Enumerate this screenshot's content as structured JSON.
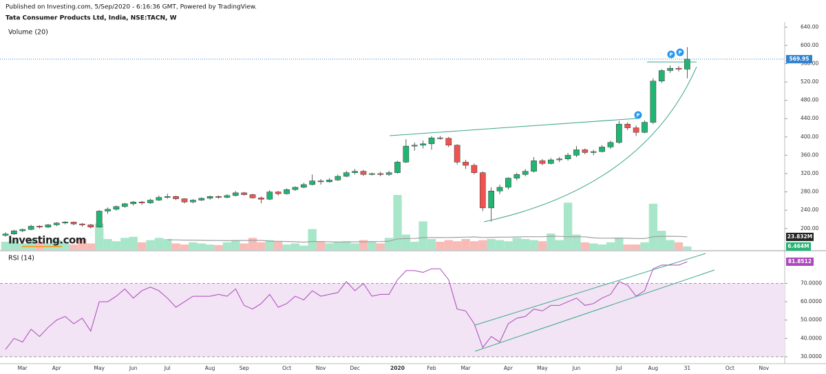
{
  "header": {
    "published": "Published on Investing.com, 5/Sep/2020 - 6:16:36 GMT, Powered by TradingView.",
    "title": "Tata Consumer Products Ltd, India, NSE:TACN, W"
  },
  "logo": "Investing.com",
  "chart_data": {
    "type": "candlestick",
    "categories": [
      null,
      null,
      "Mar",
      null,
      null,
      null,
      "Apr",
      null,
      null,
      null,
      null,
      "May",
      null,
      null,
      null,
      "Jun",
      null,
      null,
      null,
      "Jul",
      null,
      null,
      null,
      null,
      "Aug",
      null,
      null,
      null,
      "Sep",
      null,
      null,
      null,
      null,
      "Oct",
      null,
      null,
      null,
      "Nov",
      null,
      null,
      null,
      "Dec",
      null,
      null,
      null,
      null,
      "2020",
      null,
      null,
      null,
      "Feb",
      null,
      null,
      null,
      "Mar",
      null,
      null,
      null,
      null,
      "Apr",
      null,
      null,
      null,
      "May",
      null,
      null,
      null,
      "Jun",
      null,
      null,
      null,
      null,
      "Jul",
      null,
      null,
      null,
      "Aug",
      null,
      null,
      null,
      "31",
      null,
      null,
      null,
      null,
      "Oct",
      null,
      null,
      null,
      "Nov",
      null
    ],
    "open": [
      185,
      188,
      195,
      198,
      205,
      203,
      208,
      212,
      214,
      210,
      208,
      203,
      238,
      242,
      248,
      254,
      258,
      256,
      262,
      268,
      270,
      265,
      258,
      262,
      266,
      270,
      268,
      272,
      278,
      274,
      267,
      264,
      280,
      276,
      285,
      290,
      296,
      304,
      302,
      306,
      314,
      322,
      325,
      318,
      320,
      318,
      322,
      345,
      380,
      382,
      385,
      398,
      397,
      382,
      345,
      338,
      322,
      245,
      282,
      290,
      310,
      318,
      325,
      348,
      342,
      350,
      352,
      360,
      372,
      366,
      368,
      378,
      388,
      428,
      420,
      410,
      432,
      522,
      545,
      550,
      548,
      null,
      null,
      null,
      null,
      null,
      null,
      null,
      null,
      null,
      null
    ],
    "high": [
      192,
      197,
      200,
      208,
      207,
      210,
      214,
      216,
      215,
      212,
      210,
      240,
      246,
      250,
      256,
      260,
      260,
      265,
      272,
      276,
      272,
      266,
      264,
      268,
      272,
      272,
      275,
      282,
      280,
      276,
      270,
      284,
      282,
      288,
      292,
      300,
      318,
      308,
      310,
      318,
      326,
      330,
      328,
      322,
      324,
      326,
      348,
      395,
      388,
      392,
      402,
      402,
      400,
      384,
      350,
      342,
      325,
      290,
      296,
      312,
      322,
      330,
      356,
      352,
      354,
      356,
      365,
      380,
      375,
      372,
      382,
      392,
      435,
      432,
      425,
      436,
      528,
      548,
      556,
      555,
      596,
      null,
      null,
      null,
      null,
      null,
      null,
      null,
      null,
      null,
      null
    ],
    "low": [
      182,
      186,
      192,
      196,
      200,
      201,
      205,
      209,
      207,
      204,
      200,
      202,
      232,
      239,
      245,
      250,
      252,
      254,
      260,
      265,
      262,
      255,
      255,
      260,
      263,
      265,
      266,
      270,
      272,
      265,
      255,
      262,
      272,
      274,
      282,
      288,
      294,
      296,
      300,
      304,
      312,
      318,
      315,
      316,
      314,
      315,
      320,
      343,
      370,
      375,
      372,
      394,
      378,
      340,
      330,
      318,
      238,
      215,
      275,
      285,
      305,
      314,
      322,
      338,
      340,
      345,
      348,
      356,
      362,
      360,
      366,
      374,
      385,
      415,
      402,
      408,
      428,
      518,
      540,
      543,
      528,
      null,
      null,
      null,
      null,
      null,
      null,
      null,
      null,
      null,
      null
    ],
    "close": [
      188,
      195,
      198,
      205,
      203,
      208,
      212,
      214,
      210,
      208,
      203,
      238,
      242,
      248,
      254,
      258,
      256,
      262,
      268,
      270,
      265,
      258,
      262,
      266,
      270,
      268,
      272,
      278,
      274,
      267,
      264,
      280,
      276,
      285,
      290,
      296,
      304,
      302,
      306,
      314,
      322,
      325,
      318,
      320,
      318,
      322,
      345,
      380,
      382,
      385,
      398,
      397,
      382,
      345,
      338,
      322,
      245,
      282,
      290,
      310,
      318,
      325,
      348,
      342,
      350,
      352,
      360,
      372,
      366,
      368,
      378,
      388,
      428,
      420,
      410,
      432,
      522,
      545,
      550,
      548,
      569.95,
      null,
      null,
      null,
      null,
      null,
      null,
      null,
      null,
      null,
      null
    ],
    "up_color": "#21b573",
    "down_color": "#ef5350",
    "last_price_color": "#2f80d1",
    "ylim": [
      153,
      651
    ],
    "yticks": [
      {
        "value": 640,
        "label": "640.00"
      },
      {
        "value": 600,
        "label": "600.00"
      },
      {
        "value": 560,
        "label": "560.00"
      },
      {
        "value": 520,
        "label": "520.00"
      },
      {
        "value": 480,
        "label": "480.00"
      },
      {
        "value": 440,
        "label": "440.00"
      },
      {
        "value": 400,
        "label": "400.00"
      },
      {
        "value": 360,
        "label": "360.00"
      },
      {
        "value": 320,
        "label": "320.00"
      },
      {
        "value": 280,
        "label": "280.00"
      },
      {
        "value": 240,
        "label": "240.00"
      },
      {
        "value": 200,
        "label": "200.00"
      }
    ],
    "volume": {
      "label": "Volume (20)",
      "values": [
        15,
        18,
        12,
        20,
        15,
        12,
        18,
        14,
        10,
        20,
        12,
        48,
        20,
        16,
        22,
        24,
        14,
        18,
        22,
        20,
        12,
        10,
        14,
        12,
        10,
        9,
        14,
        18,
        12,
        22,
        14,
        18,
        16,
        10,
        12,
        8,
        38,
        16,
        12,
        14,
        16,
        12,
        18,
        16,
        12,
        22,
        100,
        28,
        15,
        52,
        20,
        15,
        18,
        16,
        20,
        16,
        18,
        20,
        18,
        16,
        22,
        20,
        18,
        16,
        30,
        18,
        86,
        28,
        14,
        12,
        10,
        14,
        22,
        10,
        10,
        14,
        84,
        35,
        18,
        14,
        6.464,
        null,
        null,
        null,
        null,
        null,
        null,
        null,
        null,
        null,
        null
      ],
      "up_color": "#a8e6c9",
      "down_color": "#f8bcb8",
      "ma_color": "#9e9e9e",
      "ma_label": {
        "value": 23.832,
        "label": "23.832M"
      },
      "last_label": "6.464M"
    },
    "rsi": {
      "label": "RSI (14)",
      "values": [
        34,
        40,
        38,
        45,
        41,
        46,
        50,
        52,
        48,
        51,
        44,
        60,
        60,
        63,
        67,
        62,
        66,
        68,
        66,
        62,
        57,
        60,
        63,
        63,
        63,
        64,
        63,
        67,
        58,
        56,
        59,
        64,
        57,
        59,
        63,
        61,
        66,
        63,
        64,
        65,
        71,
        66,
        70,
        63,
        64,
        64,
        72,
        77,
        77,
        76,
        78,
        78,
        72,
        56,
        55,
        48,
        35,
        41,
        38,
        48,
        51,
        52,
        56,
        55,
        58,
        58,
        60,
        62,
        58,
        59,
        62,
        64,
        71,
        69,
        63,
        66,
        78,
        80,
        80,
        80,
        81.8512,
        null,
        null,
        null,
        null,
        null,
        null,
        null,
        null,
        null,
        null
      ],
      "color": "#ab47bc",
      "band": [
        30,
        70
      ],
      "band_color": "#f2e4f4",
      "ylim": [
        26.2,
        87.1
      ],
      "yticks": [
        {
          "value": 70,
          "label": "70.0000"
        },
        {
          "value": 60,
          "label": "60.0000"
        },
        {
          "value": 50,
          "label": "50.0000"
        },
        {
          "value": 40,
          "label": "40.0000"
        },
        {
          "value": 30,
          "label": "30.0000"
        }
      ]
    },
    "annotations": [
      "P",
      "P",
      "P"
    ]
  }
}
